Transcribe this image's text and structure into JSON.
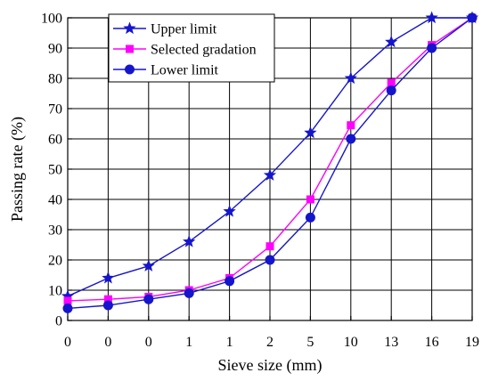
{
  "chart_data": {
    "type": "line",
    "categories": [
      "0",
      "0",
      "0",
      "1",
      "1",
      "2",
      "5",
      "10",
      "13",
      "16",
      "19"
    ],
    "xlabel": "Sieve size (mm)",
    "ylabel": "Passing rate (%)",
    "ylim": [
      0,
      100
    ],
    "yticks": [
      0,
      10,
      20,
      30,
      40,
      50,
      60,
      70,
      80,
      90,
      100
    ],
    "grid": true,
    "legend_position": "top-left",
    "series": [
      {
        "name": "Upper limit",
        "marker": "star",
        "color": "#1515CC",
        "values": [
          8,
          14,
          18,
          26,
          36,
          48,
          62,
          80,
          92,
          100,
          100
        ]
      },
      {
        "name": "Selected gradation",
        "marker": "square",
        "color": "#FF00FF",
        "values": [
          6.5,
          7,
          7.8,
          10,
          14,
          24.5,
          40,
          64.5,
          78.5,
          91,
          100
        ]
      },
      {
        "name": "Lower limit",
        "marker": "circle",
        "color": "#1515CC",
        "values": [
          4,
          5,
          7,
          9,
          13,
          20,
          34,
          60,
          76,
          90,
          100
        ]
      }
    ]
  }
}
